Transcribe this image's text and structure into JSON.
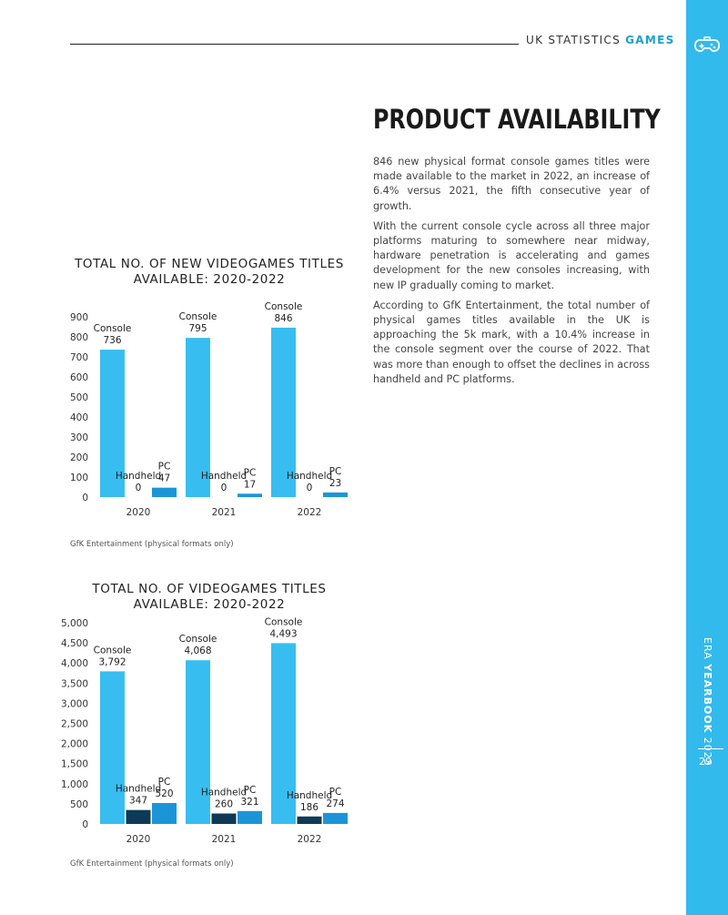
{
  "header": {
    "section": "UK STATISTICS",
    "accent": "GAMES"
  },
  "sidebar": {
    "brand_light": "ERA",
    "brand_bold": "YEARBOOK",
    "year": "2023",
    "page_number": "29",
    "icon": "gamepad-icon",
    "color": "#33baec"
  },
  "article": {
    "title": "PRODUCT AVAILABILITY",
    "paragraphs": [
      "846 new physical format console games titles were made available to the market in 2022, an increase of 6.4% versus 2021, the fifth consecutive year of growth.",
      "With the current console cycle across all three major platforms maturing to somewhere near midway, hardware penetration is accelerating and games development for the new consoles increasing, with new IP gradually coming to market.",
      "According to GfK Entertainment, the total number of physical games titles available in the UK is approaching the 5k mark, with a 10.4% increase in the console segment over the course of 2022. That was more than enough to offset the declines in across handheld and PC platforms."
    ]
  },
  "colors": {
    "console": "#38bdf0",
    "handheld": "#0f3a57",
    "pc": "#1c95d8"
  },
  "chart_data": [
    {
      "type": "bar",
      "title_line1": "TOTAL NO. OF NEW VIDEOGAMES TITLES",
      "title_line2": "AVAILABLE: 2020-2022",
      "categories": [
        "2020",
        "2021",
        "2022"
      ],
      "series": [
        {
          "name": "Console",
          "values": [
            736,
            795,
            846
          ],
          "labels": [
            "736",
            "795",
            "846"
          ]
        },
        {
          "name": "Handheld",
          "values": [
            0,
            0,
            0
          ],
          "labels": [
            "0",
            "0",
            "0"
          ]
        },
        {
          "name": "PC",
          "values": [
            47,
            17,
            23
          ],
          "labels": [
            "47",
            "17",
            "23"
          ]
        }
      ],
      "ylim": [
        0,
        900
      ],
      "yticks": [
        0,
        100,
        200,
        300,
        400,
        500,
        600,
        700,
        800,
        900
      ],
      "yticklabels": [
        "0",
        "100",
        "200",
        "300",
        "400",
        "500",
        "600",
        "700",
        "800",
        "900"
      ],
      "source": "GfK Entertainment (physical formats only)"
    },
    {
      "type": "bar",
      "title_line1": "TOTAL NO. OF VIDEOGAMES TITLES",
      "title_line2": "AVAILABLE: 2020-2022",
      "categories": [
        "2020",
        "2021",
        "2022"
      ],
      "series": [
        {
          "name": "Console",
          "values": [
            3792,
            4068,
            4493
          ],
          "labels": [
            "3,792",
            "4,068",
            "4,493"
          ]
        },
        {
          "name": "Handheld",
          "values": [
            347,
            260,
            186
          ],
          "labels": [
            "347",
            "260",
            "186"
          ]
        },
        {
          "name": "PC",
          "values": [
            520,
            321,
            274
          ],
          "labels": [
            "520",
            "321",
            "274"
          ]
        }
      ],
      "ylim": [
        0,
        5000
      ],
      "yticks": [
        0,
        500,
        1000,
        1500,
        2000,
        2500,
        3000,
        3500,
        4000,
        4500,
        5000
      ],
      "yticklabels": [
        "0",
        "500",
        "1,000",
        "1,500",
        "2,000",
        "2,500",
        "3,000",
        "3,500",
        "4,000",
        "4,500",
        "5,000"
      ],
      "source": "GfK Entertainment (physical formats only)"
    }
  ]
}
